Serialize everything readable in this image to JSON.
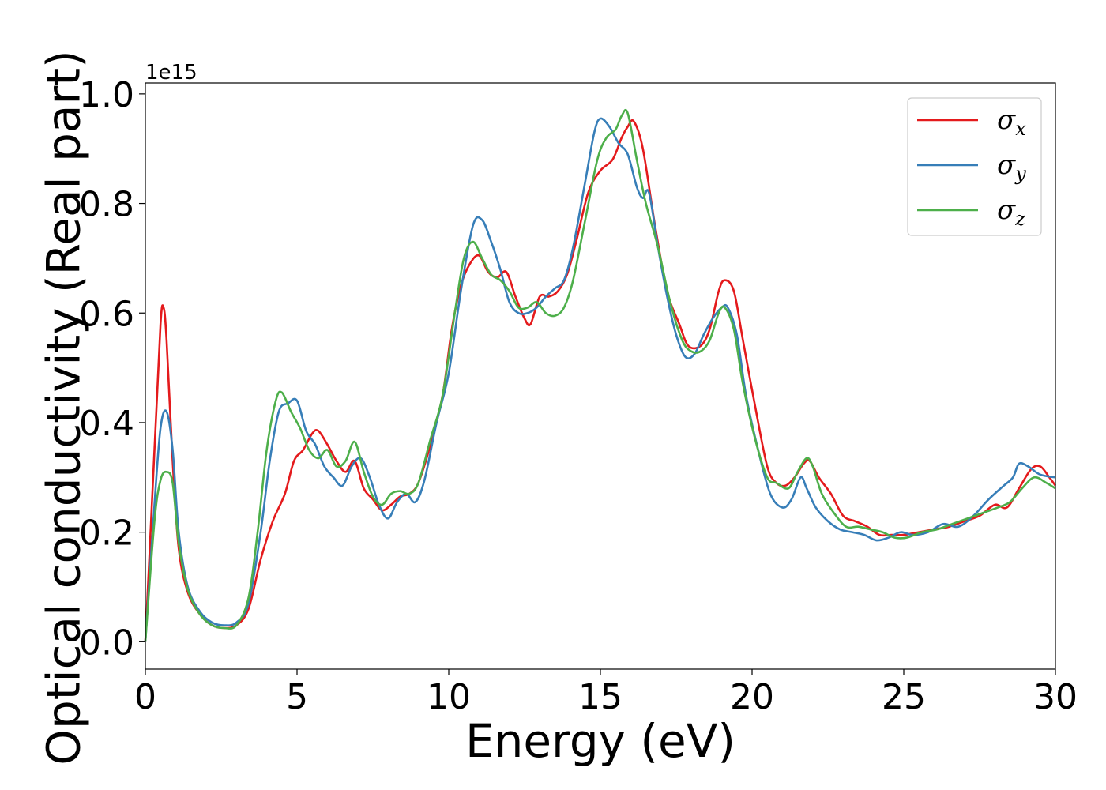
{
  "chart_data": {
    "type": "line",
    "xlabel": "Energy (eV)",
    "ylabel": "Optical conductivity (Real part)",
    "y_offset_label": "1e15",
    "xlim": [
      0,
      30
    ],
    "ylim": [
      -0.05,
      1.02
    ],
    "xticks": [
      0,
      5,
      10,
      15,
      20,
      25,
      30
    ],
    "xtick_labels": [
      "0",
      "5",
      "10",
      "15",
      "20",
      "25",
      "30"
    ],
    "yticks": [
      0.0,
      0.2,
      0.4,
      0.6,
      0.8,
      1.0
    ],
    "ytick_labels": [
      "0.0",
      "0.2",
      "0.4",
      "0.6",
      "0.8",
      "1.0"
    ],
    "grid": false,
    "legend_position": "top-right",
    "series": [
      {
        "name": "σx",
        "base": "σ",
        "sub": "x",
        "color": "#e41a1c",
        "x": [
          0,
          0.3,
          0.5,
          0.6,
          0.7,
          0.9,
          1.1,
          1.4,
          1.8,
          2.2,
          2.6,
          3.0,
          3.4,
          3.8,
          4.2,
          4.6,
          4.9,
          5.2,
          5.5,
          5.7,
          6.0,
          6.3,
          6.6,
          6.9,
          7.2,
          7.5,
          7.8,
          8.1,
          8.4,
          8.7,
          9.0,
          9.4,
          9.8,
          10.1,
          10.4,
          10.7,
          11.0,
          11.3,
          11.6,
          11.9,
          12.2,
          12.5,
          12.7,
          13.0,
          13.3,
          13.6,
          13.9,
          14.2,
          14.6,
          15.0,
          15.4,
          15.7,
          15.9,
          16.1,
          16.4,
          16.8,
          17.2,
          17.6,
          17.9,
          18.3,
          18.6,
          18.9,
          19.1,
          19.4,
          19.7,
          20.1,
          20.5,
          20.8,
          21.1,
          21.4,
          21.7,
          21.9,
          22.2,
          22.6,
          23.0,
          23.4,
          23.8,
          24.2,
          24.6,
          25.0,
          25.5,
          26.0,
          26.5,
          27.0,
          27.5,
          28.0,
          28.4,
          28.8,
          29.2,
          29.5,
          29.8,
          30
        ],
        "y": [
          0,
          0.35,
          0.58,
          0.61,
          0.55,
          0.33,
          0.17,
          0.09,
          0.05,
          0.03,
          0.025,
          0.03,
          0.06,
          0.15,
          0.22,
          0.27,
          0.33,
          0.35,
          0.38,
          0.385,
          0.36,
          0.33,
          0.31,
          0.33,
          0.28,
          0.26,
          0.24,
          0.25,
          0.265,
          0.27,
          0.29,
          0.36,
          0.45,
          0.57,
          0.65,
          0.69,
          0.705,
          0.675,
          0.665,
          0.675,
          0.63,
          0.59,
          0.58,
          0.63,
          0.63,
          0.64,
          0.67,
          0.73,
          0.82,
          0.86,
          0.88,
          0.92,
          0.94,
          0.95,
          0.9,
          0.76,
          0.64,
          0.58,
          0.54,
          0.54,
          0.57,
          0.64,
          0.66,
          0.64,
          0.55,
          0.43,
          0.32,
          0.29,
          0.285,
          0.3,
          0.325,
          0.33,
          0.3,
          0.27,
          0.23,
          0.22,
          0.21,
          0.195,
          0.195,
          0.195,
          0.2,
          0.205,
          0.21,
          0.22,
          0.23,
          0.25,
          0.245,
          0.28,
          0.315,
          0.32,
          0.3,
          0.285
        ]
      },
      {
        "name": "σy",
        "base": "σ",
        "sub": "y",
        "color": "#377eb8",
        "x": [
          0,
          0.3,
          0.5,
          0.7,
          0.9,
          1.1,
          1.4,
          1.8,
          2.2,
          2.6,
          3.0,
          3.4,
          3.8,
          4.1,
          4.4,
          4.7,
          5.0,
          5.3,
          5.6,
          5.9,
          6.2,
          6.5,
          6.8,
          7.1,
          7.4,
          7.7,
          8.0,
          8.3,
          8.6,
          8.9,
          9.2,
          9.6,
          10.0,
          10.4,
          10.8,
          11.1,
          11.4,
          11.7,
          12.0,
          12.3,
          12.6,
          12.9,
          13.2,
          13.5,
          13.8,
          14.1,
          14.5,
          14.8,
          15.0,
          15.3,
          15.6,
          15.9,
          16.2,
          16.4,
          16.6,
          16.9,
          17.2,
          17.5,
          17.8,
          18.1,
          18.4,
          18.7,
          19.0,
          19.2,
          19.5,
          19.8,
          20.2,
          20.6,
          21.0,
          21.3,
          21.6,
          21.8,
          22.1,
          22.5,
          22.9,
          23.3,
          23.7,
          24.1,
          24.5,
          24.9,
          25.3,
          25.8,
          26.3,
          26.8,
          27.3,
          27.8,
          28.3,
          28.6,
          28.8,
          29.1,
          29.5,
          30
        ],
        "y": [
          0,
          0.25,
          0.39,
          0.42,
          0.35,
          0.2,
          0.1,
          0.055,
          0.035,
          0.03,
          0.035,
          0.07,
          0.2,
          0.33,
          0.42,
          0.435,
          0.44,
          0.385,
          0.36,
          0.32,
          0.3,
          0.285,
          0.32,
          0.335,
          0.3,
          0.25,
          0.225,
          0.255,
          0.27,
          0.255,
          0.295,
          0.4,
          0.49,
          0.64,
          0.76,
          0.77,
          0.73,
          0.68,
          0.62,
          0.6,
          0.6,
          0.61,
          0.63,
          0.645,
          0.66,
          0.72,
          0.84,
          0.93,
          0.955,
          0.94,
          0.91,
          0.89,
          0.83,
          0.81,
          0.82,
          0.72,
          0.63,
          0.56,
          0.52,
          0.525,
          0.56,
          0.59,
          0.61,
          0.61,
          0.56,
          0.45,
          0.35,
          0.27,
          0.245,
          0.26,
          0.3,
          0.28,
          0.245,
          0.22,
          0.205,
          0.2,
          0.195,
          0.185,
          0.19,
          0.2,
          0.195,
          0.2,
          0.215,
          0.21,
          0.23,
          0.26,
          0.285,
          0.3,
          0.325,
          0.32,
          0.305,
          0.3
        ]
      },
      {
        "name": "σz",
        "base": "σ",
        "sub": "z",
        "color": "#4daf4a",
        "x": [
          0,
          0.3,
          0.5,
          0.7,
          0.9,
          1.1,
          1.4,
          1.8,
          2.2,
          2.6,
          3.0,
          3.4,
          3.7,
          4.0,
          4.3,
          4.5,
          4.8,
          5.1,
          5.4,
          5.7,
          6.0,
          6.3,
          6.6,
          6.9,
          7.2,
          7.5,
          7.8,
          8.1,
          8.4,
          8.7,
          9.0,
          9.4,
          9.8,
          10.2,
          10.5,
          10.8,
          11.1,
          11.4,
          11.7,
          12.0,
          12.3,
          12.6,
          12.9,
          13.2,
          13.5,
          13.8,
          14.1,
          14.5,
          14.9,
          15.2,
          15.5,
          15.7,
          15.9,
          16.2,
          16.5,
          16.9,
          17.3,
          17.7,
          18.0,
          18.3,
          18.6,
          18.9,
          19.1,
          19.4,
          19.7,
          20.1,
          20.5,
          20.8,
          21.2,
          21.5,
          21.8,
          22.0,
          22.3,
          22.7,
          23.1,
          23.5,
          23.9,
          24.3,
          24.7,
          25.1,
          25.6,
          26.1,
          26.6,
          27.1,
          27.6,
          28.1,
          28.5,
          28.9,
          29.3,
          29.7,
          30
        ],
        "y": [
          0,
          0.22,
          0.295,
          0.31,
          0.29,
          0.18,
          0.095,
          0.05,
          0.03,
          0.025,
          0.03,
          0.08,
          0.2,
          0.35,
          0.44,
          0.455,
          0.42,
          0.39,
          0.35,
          0.335,
          0.35,
          0.32,
          0.33,
          0.365,
          0.31,
          0.265,
          0.25,
          0.27,
          0.275,
          0.27,
          0.29,
          0.37,
          0.45,
          0.6,
          0.7,
          0.73,
          0.7,
          0.67,
          0.66,
          0.64,
          0.61,
          0.61,
          0.62,
          0.6,
          0.595,
          0.61,
          0.66,
          0.77,
          0.88,
          0.92,
          0.935,
          0.96,
          0.965,
          0.88,
          0.8,
          0.72,
          0.62,
          0.55,
          0.53,
          0.53,
          0.55,
          0.6,
          0.61,
          0.57,
          0.47,
          0.37,
          0.3,
          0.29,
          0.28,
          0.31,
          0.335,
          0.32,
          0.27,
          0.235,
          0.21,
          0.21,
          0.205,
          0.2,
          0.19,
          0.19,
          0.2,
          0.205,
          0.215,
          0.225,
          0.235,
          0.245,
          0.255,
          0.28,
          0.3,
          0.29,
          0.28
        ]
      }
    ]
  }
}
